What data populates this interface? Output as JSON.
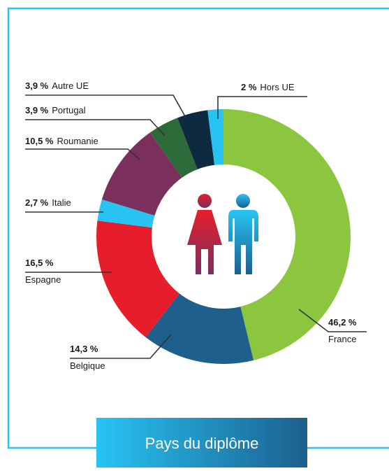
{
  "chart_data": {
    "type": "donut",
    "title": "Pays du diplôme",
    "categories": [
      "France",
      "Belgique",
      "Espagne",
      "Italie",
      "Roumanie",
      "Portugal",
      "Autre UE",
      "Hors UE"
    ],
    "values": [
      46.2,
      14.3,
      16.5,
      2.7,
      10.5,
      3.9,
      3.9,
      2
    ],
    "value_labels": [
      "46,2 %",
      "14,3 %",
      "16,5 %",
      "2,7 %",
      "10,5 %",
      "3,9 %",
      "3,9 %",
      "2 %"
    ],
    "colors": [
      "#8cc63f",
      "#1f5f8b",
      "#e61e2b",
      "#27c4f3",
      "#7a2f5d",
      "#2d6a39",
      "#0e2a40",
      "#27c4f3"
    ]
  }
}
